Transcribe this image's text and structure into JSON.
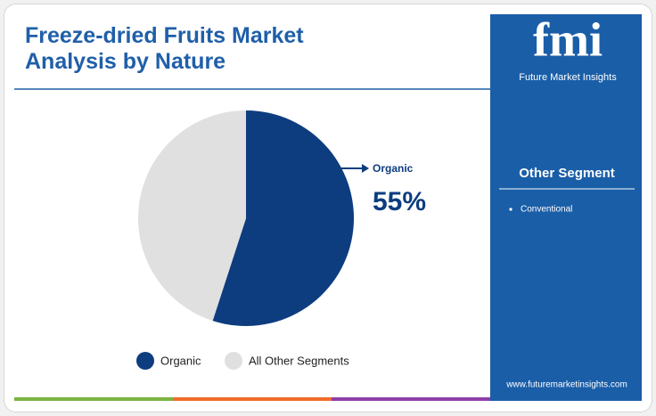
{
  "chart_data": {
    "type": "pie",
    "title": "Freeze-dried Fruits Market Analysis by Nature",
    "categories": [
      "Organic",
      "All Other Segments"
    ],
    "values": [
      55,
      45
    ],
    "value_labels": [
      "55%",
      null
    ],
    "colors": [
      "#0d3d7f",
      "#e0e0e0"
    ]
  },
  "sidebar": {
    "logo": "fmi",
    "brand": "Future Market Insights",
    "heading": "Other Segment",
    "items": [
      "Conventional"
    ],
    "url": "www.futuremarketinsights.com"
  }
}
